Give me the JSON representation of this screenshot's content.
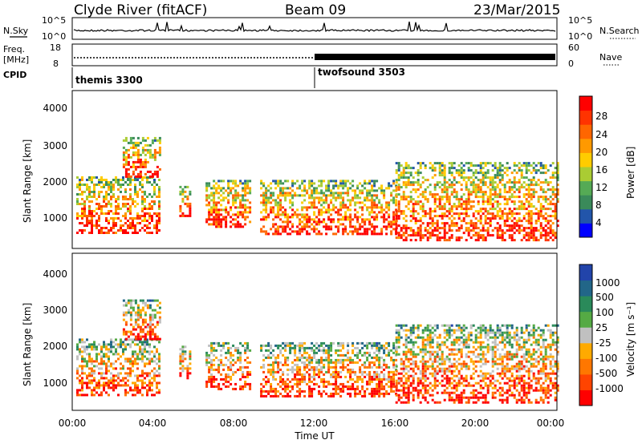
{
  "header": {
    "station": "Clyde River (fitACF)",
    "beam": "Beam 09",
    "date": "23/Mar/2015"
  },
  "panels": {
    "nsky_label": "N.Sky",
    "nsky_ticks": [
      "10^5",
      "10^0"
    ],
    "nsearch_label": "N.Search",
    "nsearch_ticks": [
      "10^5",
      "10^0"
    ],
    "freq_label_1": "Freq.",
    "freq_label_2": "[MHz]",
    "freq_ticks": [
      "18",
      "8"
    ],
    "nave_label": "Nave",
    "nave_ticks": [
      "60",
      "0"
    ],
    "cpid_label": "CPID",
    "cpid_segments": [
      {
        "name": "themis 3300",
        "start_hour": 0
      },
      {
        "name": "twofsound 3503",
        "start_hour": 12
      }
    ]
  },
  "axes": {
    "ylabel": "Slant Range [km]",
    "y_ticks": [
      "4000",
      "3000",
      "2000",
      "1000"
    ],
    "x_ticks": [
      "00:00",
      "04:00",
      "08:00",
      "12:00",
      "16:00",
      "20:00",
      "00:00"
    ],
    "xlabel": "Time UT"
  },
  "colorbars": {
    "power": {
      "label": "Power [dB]",
      "ticks": [
        "28",
        "24",
        "20",
        "16",
        "12",
        "8",
        "4"
      ],
      "colors": [
        "#0000ff",
        "#2255aa",
        "#3a8a5a",
        "#55aa55",
        "#aacc33",
        "#ffcc00",
        "#ff9900",
        "#ff6600",
        "#ff3300",
        "#ff0000"
      ]
    },
    "velocity": {
      "label": "Velocity [m s⁻¹]",
      "ticks": [
        "1000",
        "500",
        "100",
        "25",
        "-25",
        "-100",
        "-500",
        "-1000"
      ],
      "colors": [
        "#2244aa",
        "#226688",
        "#2a8a5a",
        "#55aa44",
        "#c0c0c0",
        "#ffaa00",
        "#ff7700",
        "#ff4400",
        "#ff0000"
      ]
    }
  },
  "chart_data": {
    "type": "heatmap",
    "x_range_hours": [
      0,
      24
    ],
    "y_range_km": [
      180,
      4600
    ],
    "echo_regions_hours": [
      {
        "t0": 0.2,
        "t1": 4.3,
        "r0": 600,
        "r1": 2200
      },
      {
        "t0": 2.5,
        "t1": 4.4,
        "r0": 2200,
        "r1": 3300
      },
      {
        "t0": 5.3,
        "t1": 5.8,
        "r0": 1100,
        "r1": 2000
      },
      {
        "t0": 6.6,
        "t1": 8.8,
        "r0": 800,
        "r1": 2100
      },
      {
        "t0": 9.3,
        "t1": 16.0,
        "r0": 600,
        "r1": 2100
      },
      {
        "t0": 16.0,
        "t1": 24.0,
        "r0": 400,
        "r1": 2600
      }
    ],
    "grid": false
  }
}
